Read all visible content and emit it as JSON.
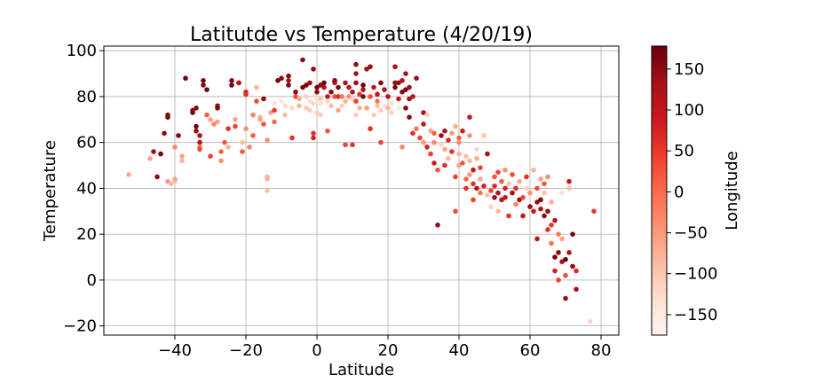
{
  "chart_data": {
    "type": "scatter",
    "title": "Latitutde vs Temperature (4/20/19)",
    "xlabel": "Latitude",
    "ylabel": "Temperature",
    "xlim": [
      -60,
      85
    ],
    "ylim": [
      -24,
      102
    ],
    "x_ticks": [
      -40,
      -20,
      0,
      20,
      40,
      60,
      80
    ],
    "x_tick_labels": [
      "−40",
      "−20",
      "0",
      "20",
      "40",
      "60",
      "80"
    ],
    "y_ticks": [
      -20,
      0,
      20,
      40,
      60,
      80,
      100
    ],
    "y_tick_labels": [
      "−20",
      "0",
      "20",
      "40",
      "60",
      "80",
      "100"
    ],
    "grid": true,
    "colorbar": {
      "label": "Longitude",
      "range": [
        -175,
        178
      ],
      "colormap": "Reds",
      "ticks": [
        -150,
        -100,
        -50,
        0,
        50,
        100,
        150
      ],
      "tick_labels": [
        "−150",
        "−100",
        "−50",
        "0",
        "50",
        "100",
        "150"
      ]
    },
    "points": [
      [
        -53,
        46,
        -70
      ],
      [
        -47,
        53,
        -60
      ],
      [
        -46,
        56,
        140
      ],
      [
        -45,
        45,
        150
      ],
      [
        -44,
        55,
        170
      ],
      [
        -43,
        64,
        150
      ],
      [
        -42,
        71,
        170
      ],
      [
        -42,
        72,
        160
      ],
      [
        -42,
        43,
        -50
      ],
      [
        -41,
        42,
        -80
      ],
      [
        -40,
        43,
        -100
      ],
      [
        -40,
        44,
        -60
      ],
      [
        -40,
        58,
        -30
      ],
      [
        -39,
        63,
        160
      ],
      [
        -38,
        54,
        -60
      ],
      [
        -38,
        52,
        -80
      ],
      [
        -37,
        88,
        170
      ],
      [
        -35,
        74,
        150
      ],
      [
        -35,
        73,
        170
      ],
      [
        -34,
        75,
        150
      ],
      [
        -34,
        67,
        170
      ],
      [
        -34,
        65,
        150
      ],
      [
        -33,
        63,
        120
      ],
      [
        -33,
        60,
        110
      ],
      [
        -33,
        58,
        -10
      ],
      [
        -33,
        57,
        30
      ],
      [
        -32,
        87,
        170
      ],
      [
        -32,
        85,
        160
      ],
      [
        -31,
        83,
        170
      ],
      [
        -31,
        72,
        10
      ],
      [
        -30,
        70,
        -60
      ],
      [
        -30,
        54,
        40
      ],
      [
        -29,
        68,
        -30
      ],
      [
        -28,
        76,
        150
      ],
      [
        -28,
        75,
        160
      ],
      [
        -28,
        69,
        -60
      ],
      [
        -27,
        56,
        10
      ],
      [
        -27,
        52,
        -40
      ],
      [
        -26,
        60,
        20
      ],
      [
        -25,
        58,
        -80
      ],
      [
        -25,
        66,
        60
      ],
      [
        -24,
        87,
        160
      ],
      [
        -24,
        85,
        170
      ],
      [
        -23,
        67,
        40
      ],
      [
        -23,
        70,
        -60
      ],
      [
        -22,
        86,
        150
      ],
      [
        -22,
        86,
        110
      ],
      [
        -21,
        56,
        20
      ],
      [
        -21,
        60,
        -90
      ],
      [
        -20,
        82,
        80
      ],
      [
        -20,
        81,
        60
      ],
      [
        -20,
        66,
        -40
      ],
      [
        -19,
        58,
        -30
      ],
      [
        -18,
        63,
        10
      ],
      [
        -18,
        72,
        -30
      ],
      [
        -17,
        78,
        30
      ],
      [
        -17,
        84,
        -80
      ],
      [
        -16,
        71,
        -80
      ],
      [
        -16,
        70,
        -60
      ],
      [
        -15,
        68,
        20
      ],
      [
        -15,
        79,
        150
      ],
      [
        -14,
        45,
        -80
      ],
      [
        -14,
        44,
        -80
      ],
      [
        -14,
        39,
        -90
      ],
      [
        -14,
        61,
        -40
      ],
      [
        -13,
        73,
        -60
      ],
      [
        -12,
        74,
        50
      ],
      [
        -12,
        69,
        0
      ],
      [
        -12,
        77,
        -130
      ],
      [
        -11,
        87,
        170
      ],
      [
        -10,
        88,
        150
      ],
      [
        -10,
        78,
        -150
      ],
      [
        -9,
        76,
        -130
      ],
      [
        -9,
        72,
        -90
      ],
      [
        -8,
        87,
        120
      ],
      [
        -8,
        85,
        160
      ],
      [
        -8,
        89,
        150
      ],
      [
        -7,
        62,
        60
      ],
      [
        -7,
        75,
        -120
      ],
      [
        -6,
        80,
        30
      ],
      [
        -6,
        82,
        150
      ],
      [
        -5,
        76,
        -80
      ],
      [
        -5,
        79,
        -70
      ],
      [
        -4,
        96,
        150
      ],
      [
        -4,
        84,
        160
      ],
      [
        -3,
        85,
        170
      ],
      [
        -3,
        80,
        -110
      ],
      [
        -3,
        75,
        -100
      ],
      [
        -2,
        78,
        -130
      ],
      [
        -2,
        86,
        140
      ],
      [
        -2,
        74,
        -110
      ],
      [
        -1,
        62,
        80
      ],
      [
        -1,
        64,
        60
      ],
      [
        -1,
        77,
        -120
      ],
      [
        -1,
        92,
        150
      ],
      [
        0,
        84,
        170
      ],
      [
        0,
        82,
        150
      ],
      [
        0,
        79,
        -140
      ],
      [
        0,
        73,
        -110
      ],
      [
        1,
        85,
        150
      ],
      [
        1,
        77,
        -130
      ],
      [
        1,
        79,
        -100
      ],
      [
        1,
        72,
        -110
      ],
      [
        2,
        86,
        170
      ],
      [
        2,
        84,
        120
      ],
      [
        3,
        80,
        100
      ],
      [
        3,
        65,
        20
      ],
      [
        3,
        78,
        -120
      ],
      [
        4,
        82,
        150
      ],
      [
        4,
        76,
        -90
      ],
      [
        5,
        86,
        100
      ],
      [
        5,
        87,
        160
      ],
      [
        5,
        80,
        30
      ],
      [
        6,
        84,
        170
      ],
      [
        6,
        80,
        70
      ],
      [
        6,
        74,
        -60
      ],
      [
        7,
        80,
        -10
      ],
      [
        7,
        76,
        -110
      ],
      [
        8,
        86,
        120
      ],
      [
        8,
        78,
        -80
      ],
      [
        8,
        59,
        40
      ],
      [
        9,
        84,
        110
      ],
      [
        9,
        80,
        -40
      ],
      [
        10,
        82,
        120
      ],
      [
        10,
        79,
        -120
      ],
      [
        10,
        59,
        60
      ],
      [
        11,
        94,
        150
      ],
      [
        11,
        90,
        130
      ],
      [
        11,
        86,
        140
      ],
      [
        11,
        78,
        40
      ],
      [
        11,
        72,
        -110
      ],
      [
        12,
        81,
        50
      ],
      [
        12,
        75,
        -80
      ],
      [
        13,
        83,
        120
      ],
      [
        13,
        80,
        160
      ],
      [
        13,
        85,
        170
      ],
      [
        14,
        92,
        130
      ],
      [
        14,
        75,
        -60
      ],
      [
        15,
        93,
        140
      ],
      [
        15,
        80,
        30
      ],
      [
        15,
        66,
        60
      ],
      [
        16,
        84,
        100
      ],
      [
        16,
        72,
        -110
      ],
      [
        17,
        78,
        -10
      ],
      [
        17,
        81,
        100
      ],
      [
        17,
        76,
        -90
      ],
      [
        18,
        74,
        -110
      ],
      [
        18,
        60,
        40
      ],
      [
        18,
        86,
        160
      ],
      [
        19,
        83,
        120
      ],
      [
        19,
        76,
        -140
      ],
      [
        20,
        80,
        120
      ],
      [
        20,
        75,
        -80
      ],
      [
        21,
        73,
        -110
      ],
      [
        21,
        77,
        -130
      ],
      [
        22,
        86,
        140
      ],
      [
        22,
        93,
        130
      ],
      [
        22,
        84,
        170
      ],
      [
        23,
        86,
        150
      ],
      [
        23,
        79,
        90
      ],
      [
        23,
        75,
        -150
      ],
      [
        24,
        87,
        120
      ],
      [
        24,
        82,
        150
      ],
      [
        24,
        58,
        -30
      ],
      [
        25,
        90,
        130
      ],
      [
        25,
        83,
        160
      ],
      [
        25,
        75,
        150
      ],
      [
        26,
        84,
        140
      ],
      [
        26,
        79,
        130
      ],
      [
        26,
        71,
        150
      ],
      [
        27,
        64,
        60
      ],
      [
        27,
        80,
        110
      ],
      [
        28,
        66,
        -10
      ],
      [
        28,
        88,
        140
      ],
      [
        29,
        62,
        40
      ],
      [
        30,
        68,
        100
      ],
      [
        30,
        73,
        130
      ],
      [
        30,
        60,
        -50
      ],
      [
        31,
        72,
        -110
      ],
      [
        31,
        58,
        80
      ],
      [
        32,
        65,
        -70
      ],
      [
        32,
        55,
        40
      ],
      [
        33,
        60,
        -30
      ],
      [
        33,
        64,
        10
      ],
      [
        33,
        51,
        90
      ],
      [
        34,
        48,
        20
      ],
      [
        34,
        24,
        140
      ],
      [
        35,
        59,
        -120
      ],
      [
        35,
        63,
        140
      ],
      [
        36,
        65,
        120
      ],
      [
        36,
        57,
        -60
      ],
      [
        36,
        50,
        60
      ],
      [
        37,
        53,
        -80
      ],
      [
        37,
        61,
        70
      ],
      [
        38,
        64,
        -50
      ],
      [
        38,
        56,
        60
      ],
      [
        39,
        67,
        -70
      ],
      [
        39,
        45,
        40
      ],
      [
        39,
        30,
        30
      ],
      [
        40,
        62,
        10
      ],
      [
        40,
        60,
        -30
      ],
      [
        40,
        55,
        -80
      ],
      [
        40,
        50,
        -60
      ],
      [
        41,
        65,
        80
      ],
      [
        41,
        51,
        20
      ],
      [
        42,
        54,
        -90
      ],
      [
        42,
        40,
        60
      ],
      [
        42,
        44,
        10
      ],
      [
        43,
        71,
        100
      ],
      [
        43,
        63,
        -40
      ],
      [
        43,
        52,
        -80
      ],
      [
        43,
        46,
        -50
      ],
      [
        44,
        42,
        60
      ],
      [
        44,
        48,
        100
      ],
      [
        44,
        35,
        40
      ],
      [
        45,
        57,
        -120
      ],
      [
        45,
        40,
        120
      ],
      [
        45,
        53,
        -70
      ],
      [
        46,
        49,
        40
      ],
      [
        46,
        44,
        -60
      ],
      [
        46,
        38,
        -10
      ],
      [
        47,
        63,
        -100
      ],
      [
        47,
        41,
        80
      ],
      [
        48,
        55,
        130
      ],
      [
        48,
        37,
        -90
      ],
      [
        49,
        39,
        40
      ],
      [
        49,
        32,
        -120
      ],
      [
        50,
        45,
        20
      ],
      [
        50,
        41,
        70
      ],
      [
        50,
        36,
        140
      ],
      [
        51,
        47,
        40
      ],
      [
        51,
        38,
        120
      ],
      [
        51,
        30,
        -80
      ],
      [
        52,
        43,
        10
      ],
      [
        52,
        35,
        110
      ],
      [
        53,
        40,
        80
      ],
      [
        53,
        48,
        -40
      ],
      [
        53,
        36,
        100
      ],
      [
        54,
        28,
        60
      ],
      [
        54,
        42,
        -100
      ],
      [
        55,
        38,
        130
      ],
      [
        55,
        46,
        30
      ],
      [
        56,
        33,
        -30
      ],
      [
        56,
        40,
        60
      ],
      [
        57,
        43,
        -70
      ],
      [
        57,
        35,
        120
      ],
      [
        58,
        36,
        40
      ],
      [
        58,
        28,
        100
      ],
      [
        59,
        40,
        -110
      ],
      [
        59,
        45,
        60
      ],
      [
        60,
        32,
        140
      ],
      [
        60,
        38,
        -40
      ],
      [
        61,
        30,
        90
      ],
      [
        61,
        48,
        -80
      ],
      [
        62,
        18,
        110
      ],
      [
        62,
        34,
        140
      ],
      [
        62,
        40,
        30
      ],
      [
        63,
        35,
        160
      ],
      [
        63,
        44,
        -60
      ],
      [
        63,
        31,
        120
      ],
      [
        64,
        28,
        150
      ],
      [
        64,
        42,
        20
      ],
      [
        64,
        38,
        -100
      ],
      [
        65,
        30,
        140
      ],
      [
        65,
        45,
        -40
      ],
      [
        65,
        22,
        60
      ],
      [
        66,
        16,
        -10
      ],
      [
        66,
        24,
        50
      ],
      [
        66,
        34,
        -70
      ],
      [
        67,
        10,
        170
      ],
      [
        67,
        4,
        80
      ],
      [
        67,
        26,
        120
      ],
      [
        68,
        20,
        -20
      ],
      [
        68,
        0,
        40
      ],
      [
        68,
        12,
        150
      ],
      [
        69,
        8,
        130
      ],
      [
        69,
        18,
        -60
      ],
      [
        69,
        38,
        -130
      ],
      [
        70,
        -8,
        140
      ],
      [
        70,
        9,
        170
      ],
      [
        70,
        2,
        30
      ],
      [
        71,
        12,
        120
      ],
      [
        71,
        40,
        -90
      ],
      [
        71,
        43,
        100
      ],
      [
        72,
        6,
        150
      ],
      [
        72,
        20,
        170
      ],
      [
        73,
        4,
        70
      ],
      [
        73,
        -4,
        130
      ],
      [
        77,
        -18,
        -120
      ],
      [
        78,
        30,
        50
      ]
    ]
  }
}
